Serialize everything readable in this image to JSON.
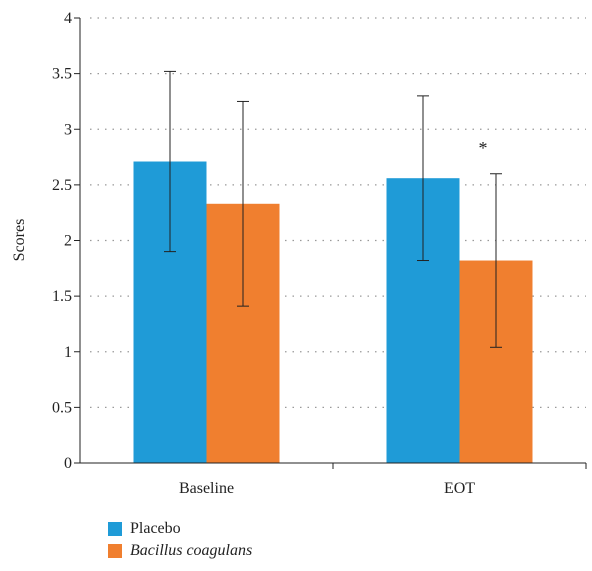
{
  "chart_data": {
    "type": "bar",
    "categories": [
      "Baseline",
      "EOT"
    ],
    "series": [
      {
        "name": "Placebo",
        "color": "#1f9bd7",
        "values": [
          2.71,
          2.56
        ],
        "error_low": [
          1.9,
          1.82
        ],
        "error_high": [
          3.52,
          3.3
        ]
      },
      {
        "name": "Bacillus coagulans",
        "color": "#f07f2f",
        "values": [
          2.33,
          1.82
        ],
        "error_low": [
          1.41,
          1.04
        ],
        "error_high": [
          3.25,
          2.6
        ]
      }
    ],
    "ylabel": "Scores",
    "ylim": [
      0,
      4
    ],
    "yticks": [
      "0",
      "0.5",
      "1",
      "1.5",
      "2",
      "2.5",
      "3",
      "3.5",
      "4"
    ],
    "grid": "dotted horizontal",
    "annotations": [
      {
        "text": "*",
        "category": "EOT",
        "series": "Bacillus coagulans"
      }
    ],
    "legend_position": "bottom-left"
  }
}
